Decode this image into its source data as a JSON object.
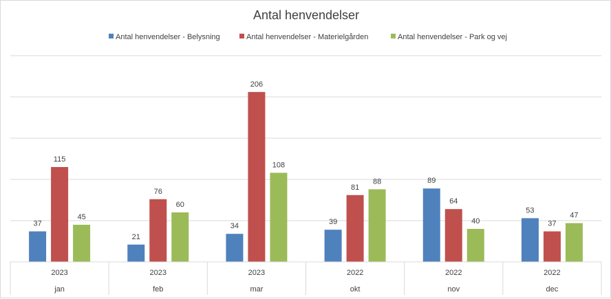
{
  "chart_data": {
    "type": "bar",
    "title": "Antal henvendelser",
    "categories": [
      {
        "year": "2023",
        "month": "jan"
      },
      {
        "year": "2023",
        "month": "feb"
      },
      {
        "year": "2023",
        "month": "mar"
      },
      {
        "year": "2022",
        "month": "okt"
      },
      {
        "year": "2022",
        "month": "nov"
      },
      {
        "year": "2022",
        "month": "dec"
      }
    ],
    "series": [
      {
        "name": "Antal henvendelser - Belysning",
        "color": "#4f81bd",
        "values": [
          37,
          21,
          34,
          39,
          89,
          53
        ]
      },
      {
        "name": "Antal henvendelser - Materielgården",
        "color": "#c0504d",
        "values": [
          115,
          76,
          206,
          81,
          64,
          37
        ]
      },
      {
        "name": "Antal henvendelser - Park og vej",
        "color": "#9bbb59",
        "values": [
          45,
          60,
          108,
          88,
          40,
          47
        ]
      }
    ],
    "ylim": [
      0,
      250
    ],
    "grid": true,
    "y_tick_labels_shown": false,
    "legend": "top",
    "data_labels": true
  }
}
